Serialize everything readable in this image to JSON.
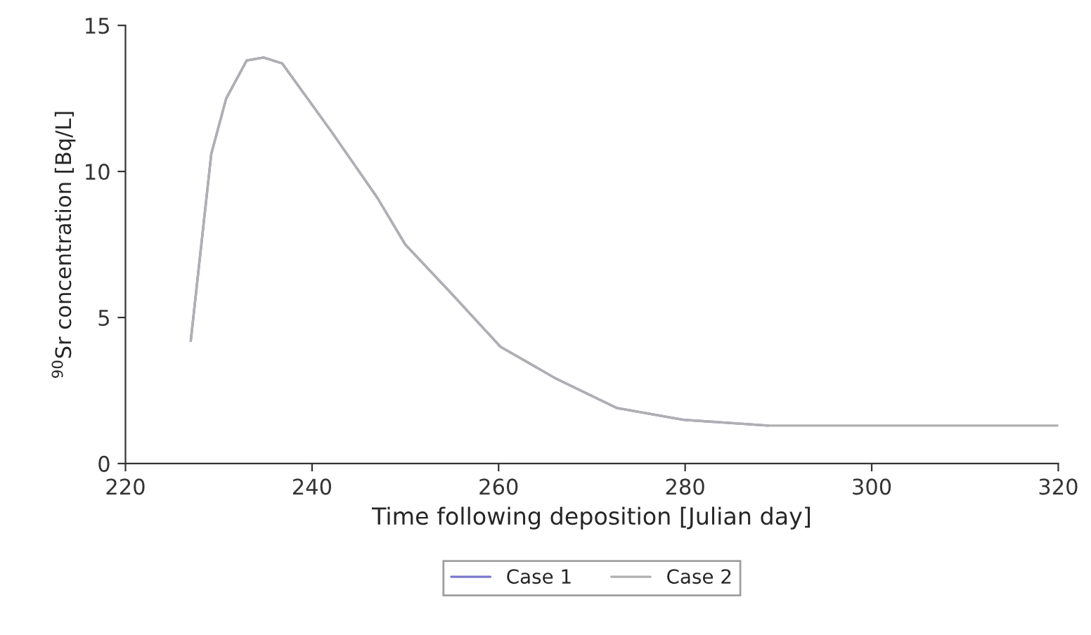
{
  "chart_data": {
    "type": "line",
    "xlabel": "Time following deposition [Julian day]",
    "ylabel": "$^{90}$Sr concentration [Bq/L]",
    "series": [
      {
        "name": "Case 1",
        "color": "#7a7ad0",
        "x": [
          227,
          229.2,
          230.8,
          233,
          234.8,
          236.8,
          242,
          247,
          250,
          255,
          260.2,
          266.2,
          272.7,
          279.8,
          288.9
        ],
        "values": [
          4.2,
          10.6,
          12.5,
          13.8,
          13.9,
          13.7,
          11.4,
          9.1,
          7.5,
          5.8,
          4.0,
          2.9,
          1.9,
          1.5,
          1.3
        ]
      },
      {
        "name": "Case 2",
        "color": "#b0b0b0",
        "x": [
          227,
          229.2,
          230.8,
          233,
          234.8,
          236.8,
          242,
          247,
          250,
          255,
          260.2,
          266.2,
          272.7,
          279.8,
          288.9,
          320
        ],
        "values": [
          4.2,
          10.6,
          12.5,
          13.8,
          13.9,
          13.7,
          11.4,
          9.1,
          7.5,
          5.8,
          4.0,
          2.9,
          1.9,
          1.5,
          1.3,
          1.3
        ]
      }
    ],
    "xlim": [
      220,
      320
    ],
    "xticks": [
      220,
      240,
      260,
      280,
      300,
      320
    ],
    "ylim": [
      0,
      15
    ],
    "yticks": [
      0,
      5,
      10,
      15
    ],
    "grid": false,
    "legend": "bottom",
    "line_style": "solid",
    "marker": "none"
  }
}
